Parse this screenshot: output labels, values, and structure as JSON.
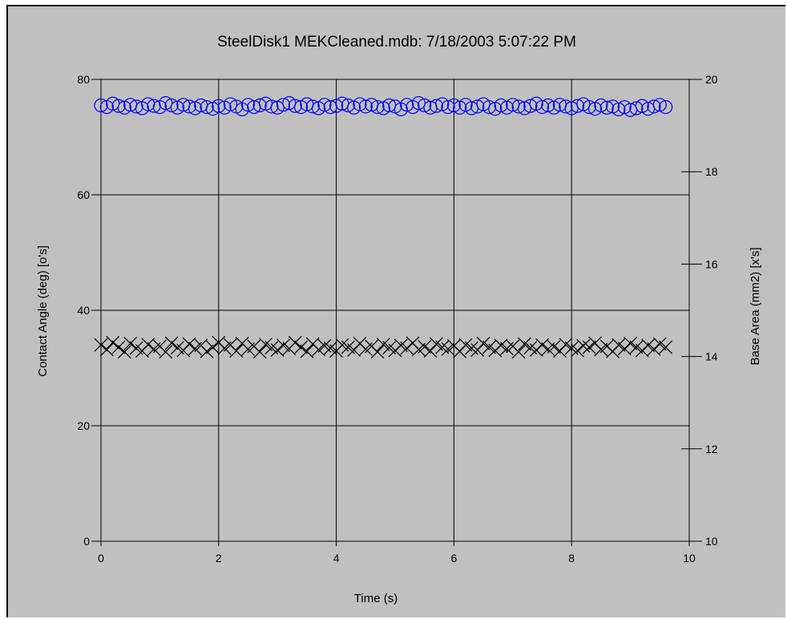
{
  "chart_data": {
    "type": "scatter",
    "title": "SteelDisk1 MEKCleaned.mdb: 7/18/2003 5:07:22 PM",
    "xlabel": "Time (s)",
    "ylabel": "Contact Angle (deg) [o's]",
    "y2label": "Base Area (mm2) [x's]",
    "xlim": [
      0,
      10
    ],
    "ylim": [
      0,
      80
    ],
    "y2lim": [
      10,
      20
    ],
    "x_ticks": [
      "0",
      "2",
      "4",
      "6",
      "8",
      "10"
    ],
    "y_ticks": [
      "0",
      "20",
      "40",
      "60",
      "80"
    ],
    "y2_ticks": [
      "10",
      "12",
      "14",
      "16",
      "18",
      "20"
    ],
    "grid": true,
    "series": [
      {
        "marker": "circle",
        "axis": "left",
        "color": "#0000ff",
        "x": [
          0.0,
          0.1,
          0.2,
          0.3,
          0.4,
          0.5,
          0.6,
          0.7,
          0.8,
          0.9,
          1.0,
          1.1,
          1.2,
          1.3,
          1.4,
          1.5,
          1.6,
          1.7,
          1.8,
          1.9,
          2.0,
          2.1,
          2.2,
          2.3,
          2.4,
          2.5,
          2.6,
          2.7,
          2.8,
          2.9,
          3.0,
          3.1,
          3.2,
          3.3,
          3.4,
          3.5,
          3.6,
          3.7,
          3.8,
          3.9,
          4.0,
          4.1,
          4.2,
          4.3,
          4.4,
          4.5,
          4.6,
          4.7,
          4.8,
          4.9,
          5.0,
          5.1,
          5.2,
          5.3,
          5.4,
          5.5,
          5.6,
          5.7,
          5.8,
          5.9,
          6.0,
          6.1,
          6.2,
          6.3,
          6.4,
          6.5,
          6.6,
          6.7,
          6.8,
          6.9,
          7.0,
          7.1,
          7.2,
          7.3,
          7.4,
          7.5,
          7.6,
          7.7,
          7.8,
          7.9,
          8.0,
          8.1,
          8.2,
          8.3,
          8.4,
          8.5,
          8.6,
          8.7,
          8.8,
          8.9,
          9.0,
          9.1,
          9.2,
          9.3,
          9.4,
          9.5,
          9.6
        ],
        "y": [
          75.5,
          75.2,
          75.8,
          75.4,
          75.1,
          75.6,
          75.3,
          75.0,
          75.7,
          75.4,
          75.2,
          75.9,
          75.5,
          75.1,
          75.6,
          75.3,
          75.0,
          75.5,
          75.2,
          74.9,
          75.4,
          75.1,
          75.7,
          75.3,
          74.8,
          75.6,
          75.2,
          75.5,
          75.8,
          75.3,
          75.1,
          75.6,
          75.9,
          75.4,
          75.2,
          75.7,
          75.3,
          75.0,
          75.6,
          75.2,
          75.4,
          75.8,
          75.5,
          75.1,
          75.7,
          75.3,
          75.6,
          75.2,
          75.0,
          75.5,
          75.3,
          74.8,
          75.6,
          75.2,
          75.9,
          75.5,
          75.1,
          75.4,
          75.7,
          75.2,
          75.5,
          75.1,
          75.6,
          75.0,
          75.3,
          75.7,
          75.2,
          74.9,
          75.5,
          75.1,
          75.6,
          75.3,
          75.0,
          75.4,
          75.8,
          75.2,
          75.5,
          75.1,
          75.6,
          75.3,
          75.0,
          75.4,
          75.7,
          75.2,
          74.9,
          75.5,
          75.1,
          75.3,
          74.8,
          75.2,
          74.7,
          75.0,
          75.4,
          74.9,
          75.3,
          75.6,
          75.2
        ]
      },
      {
        "marker": "x",
        "axis": "right",
        "color": "#000000",
        "x": [
          0.0,
          0.1,
          0.2,
          0.3,
          0.4,
          0.5,
          0.6,
          0.7,
          0.8,
          0.9,
          1.0,
          1.1,
          1.2,
          1.3,
          1.4,
          1.5,
          1.6,
          1.7,
          1.8,
          1.9,
          2.0,
          2.1,
          2.2,
          2.3,
          2.4,
          2.5,
          2.6,
          2.7,
          2.8,
          2.9,
          3.0,
          3.1,
          3.2,
          3.3,
          3.4,
          3.5,
          3.6,
          3.7,
          3.8,
          3.9,
          4.0,
          4.1,
          4.2,
          4.3,
          4.4,
          4.5,
          4.6,
          4.7,
          4.8,
          4.9,
          5.0,
          5.1,
          5.2,
          5.3,
          5.4,
          5.5,
          5.6,
          5.7,
          5.8,
          5.9,
          6.0,
          6.1,
          6.2,
          6.3,
          6.4,
          6.5,
          6.6,
          6.7,
          6.8,
          6.9,
          7.0,
          7.1,
          7.2,
          7.3,
          7.4,
          7.5,
          7.6,
          7.7,
          7.8,
          7.9,
          8.0,
          8.1,
          8.2,
          8.3,
          8.4,
          8.5,
          8.6,
          8.7,
          8.8,
          8.9,
          9.0,
          9.1,
          9.2,
          9.3,
          9.4,
          9.5,
          9.6
        ],
        "y": [
          14.25,
          14.15,
          14.3,
          14.2,
          14.1,
          14.28,
          14.18,
          14.12,
          14.26,
          14.16,
          14.22,
          14.1,
          14.29,
          14.19,
          14.13,
          14.27,
          14.17,
          14.24,
          14.11,
          14.2,
          14.3,
          14.18,
          14.25,
          14.12,
          14.28,
          14.16,
          14.22,
          14.1,
          14.26,
          14.19,
          14.14,
          14.24,
          14.17,
          14.3,
          14.2,
          14.11,
          14.27,
          14.15,
          14.23,
          14.18,
          14.12,
          14.25,
          14.2,
          14.14,
          14.28,
          14.16,
          14.22,
          14.1,
          14.26,
          14.19,
          14.13,
          14.24,
          14.18,
          14.29,
          14.15,
          14.21,
          14.12,
          14.27,
          14.2,
          14.16,
          14.23,
          14.11,
          14.25,
          14.18,
          14.14,
          14.28,
          14.2,
          14.13,
          14.24,
          14.17,
          14.22,
          14.1,
          14.27,
          14.19,
          14.14,
          14.25,
          14.16,
          14.21,
          14.12,
          14.26,
          14.18,
          14.13,
          14.23,
          14.2,
          14.29,
          14.15,
          14.22,
          14.11,
          14.25,
          14.17,
          14.28,
          14.2,
          14.13,
          14.24,
          14.16,
          14.27,
          14.2
        ]
      }
    ]
  },
  "colors": {
    "panel_background": "#c0c0c0",
    "grid": "#000000",
    "circle_series": "#0000ff",
    "x_series": "#000000"
  }
}
